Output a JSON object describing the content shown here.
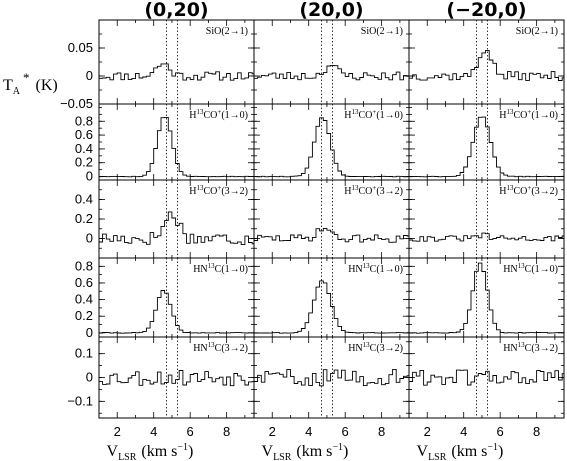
{
  "chart_data": {
    "type": "line",
    "panel_titles": [
      "(0,20)",
      "(20,0)",
      "(−20,0)"
    ],
    "ylabel": {
      "main": "T",
      "sub": "A",
      "sup": "*",
      "unit": "(K)"
    },
    "xlabel": {
      "main": "V",
      "sub": "LSR",
      "unit": "(km s",
      "sup": "−1",
      "close": ")"
    },
    "x_range": [
      1,
      9.5
    ],
    "x_ticks": [
      "2",
      "4",
      "6",
      "8"
    ],
    "x_tick_values": [
      2,
      4,
      6,
      8
    ],
    "reference_velocities": [
      4.7,
      5.3
    ],
    "rows": [
      {
        "lines": [
          {
            "mol": "SiO",
            "trans": "(2→1)"
          },
          {
            "mol": "SiO",
            "trans": "(2→1)"
          },
          {
            "mol": "SiO",
            "trans": "(2→1)"
          }
        ],
        "ylim": [
          -0.05,
          0.1
        ],
        "ticks": [
          0.05,
          0,
          -0.05
        ],
        "tick_labels": [
          "0.05",
          "0",
          "−0.05"
        ],
        "series": [
          {
            "panel": "(0,20)",
            "noise": 0.008,
            "peaks": [
              {
                "v": 4.5,
                "amp": 0.022,
                "w": 0.55
              }
            ],
            "seed": 11
          },
          {
            "panel": "(20,0)",
            "noise": 0.008,
            "peaks": [
              {
                "v": 5.2,
                "amp": 0.02,
                "w": 0.5
              }
            ],
            "seed": 23
          },
          {
            "panel": "(−20,0)",
            "noise": 0.008,
            "peaks": [
              {
                "v": 5.2,
                "amp": 0.05,
                "w": 0.5
              }
            ],
            "seed": 37
          }
        ]
      },
      {
        "lines": [
          {
            "mol": "H",
            "iso": "13",
            "rest": "CO",
            "charge": "+",
            "trans": "(1→0)"
          },
          {
            "mol": "H",
            "iso": "13",
            "rest": "CO",
            "charge": "+",
            "trans": "(1→0)"
          },
          {
            "mol": "H",
            "iso": "13",
            "rest": "CO",
            "charge": "+",
            "trans": "(1→0)"
          }
        ],
        "ylim": [
          -0.05,
          1.05
        ],
        "ticks": [
          0.8,
          0.6,
          0.4,
          0.2,
          0
        ],
        "tick_labels": [
          "0.8",
          "0.6",
          "0.4",
          "0.2",
          "0"
        ],
        "series": [
          {
            "panel": "(0,20)",
            "noise": 0.004,
            "peaks": [
              {
                "v": 4.6,
                "amp": 0.88,
                "w": 0.6
              }
            ],
            "seed": 5
          },
          {
            "panel": "(20,0)",
            "noise": 0.004,
            "peaks": [
              {
                "v": 4.75,
                "amp": 0.86,
                "w": 0.65
              }
            ],
            "seed": 9
          },
          {
            "panel": "(−20,0)",
            "noise": 0.004,
            "peaks": [
              {
                "v": 5.0,
                "amp": 0.88,
                "w": 0.7
              }
            ],
            "seed": 13
          }
        ]
      },
      {
        "lines": [
          {
            "mol": "H",
            "iso": "13",
            "rest": "CO",
            "charge": "+",
            "trans": "(3→2)"
          },
          {
            "mol": "H",
            "iso": "13",
            "rest": "CO",
            "charge": "+",
            "trans": "(3→2)"
          },
          {
            "mol": "H",
            "iso": "13",
            "rest": "CO",
            "charge": "+",
            "trans": "(3→2)"
          }
        ],
        "ylim": [
          -0.2,
          0.6
        ],
        "ticks": [
          0.4,
          0.2,
          0
        ],
        "tick_labels": [
          "0.4",
          "0.2",
          "0"
        ],
        "series": [
          {
            "panel": "(0,20)",
            "noise": 0.07,
            "peaks": [
              {
                "v": 5.0,
                "amp": 0.25,
                "w": 0.6
              }
            ],
            "seed": 17
          },
          {
            "panel": "(20,0)",
            "noise": 0.04,
            "peaks": [
              {
                "v": 4.8,
                "amp": 0.12,
                "w": 0.5
              }
            ],
            "seed": 29
          },
          {
            "panel": "(−20,0)",
            "noise": 0.03,
            "peaks": [
              {
                "v": 5.0,
                "amp": 0.03,
                "w": 0.5
              }
            ],
            "seed": 31
          }
        ]
      },
      {
        "lines": [
          {
            "mol": "HN",
            "iso": "13",
            "rest": "C",
            "charge": "",
            "trans": "(1→0)"
          },
          {
            "mol": "HN",
            "iso": "13",
            "rest": "C",
            "charge": "",
            "trans": "(1→0)"
          },
          {
            "mol": "HN",
            "iso": "13",
            "rest": "C",
            "charge": "",
            "trans": "(1→0)"
          }
        ],
        "ylim": [
          -0.05,
          0.9
        ],
        "ticks": [
          0.8,
          0.6,
          0.4,
          0.2,
          0
        ],
        "tick_labels": [
          "0.8",
          "0.6",
          "0.4",
          "0.2",
          "0"
        ],
        "series": [
          {
            "panel": "(0,20)",
            "noise": 0.004,
            "peaks": [
              {
                "v": 4.55,
                "amp": 0.51,
                "w": 0.6
              }
            ],
            "seed": 41
          },
          {
            "panel": "(20,0)",
            "noise": 0.004,
            "peaks": [
              {
                "v": 4.75,
                "amp": 0.63,
                "w": 0.7
              }
            ],
            "seed": 43
          },
          {
            "panel": "(−20,0)",
            "noise": 0.004,
            "peaks": [
              {
                "v": 4.9,
                "amp": 0.84,
                "w": 0.6
              }
            ],
            "seed": 47
          }
        ]
      },
      {
        "lines": [
          {
            "mol": "HN",
            "iso": "13",
            "rest": "C",
            "charge": "",
            "trans": "(3→2)"
          },
          {
            "mol": "HN",
            "iso": "13",
            "rest": "C",
            "charge": "",
            "trans": "(3→2)"
          },
          {
            "mol": "HN",
            "iso": "13",
            "rest": "C",
            "charge": "",
            "trans": "(3→2)"
          }
        ],
        "ylim": [
          -0.17,
          0.17
        ],
        "ticks": [
          0.1,
          0,
          -0.1
        ],
        "tick_labels": [
          "0.1",
          "0",
          "−0.1"
        ],
        "series": [
          {
            "panel": "(0,20)",
            "noise": 0.035,
            "peaks": [],
            "seed": 53
          },
          {
            "panel": "(20,0)",
            "noise": 0.035,
            "peaks": [],
            "seed": 59
          },
          {
            "panel": "(−20,0)",
            "noise": 0.035,
            "peaks": [],
            "seed": 61
          }
        ]
      }
    ]
  }
}
